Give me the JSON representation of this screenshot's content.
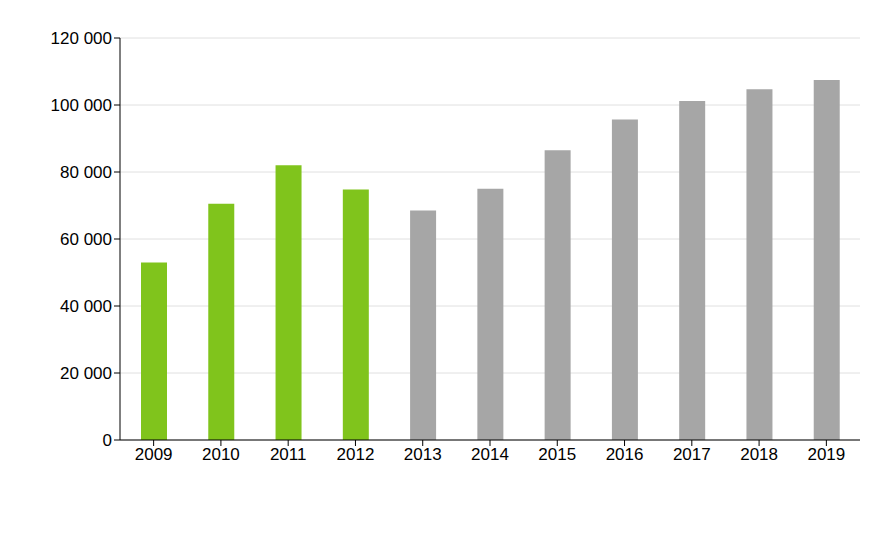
{
  "chart_data": {
    "type": "bar",
    "categories": [
      "2009",
      "2010",
      "2011",
      "2012",
      "2013",
      "2014",
      "2015",
      "2016",
      "2017",
      "2018",
      "2019"
    ],
    "values": [
      53000,
      70500,
      82000,
      74800,
      68500,
      75000,
      86500,
      95700,
      101200,
      104700,
      107500
    ],
    "colors": [
      "#80c41c",
      "#80c41c",
      "#80c41c",
      "#80c41c",
      "#a6a6a6",
      "#a6a6a6",
      "#a6a6a6",
      "#a6a6a6",
      "#a6a6a6",
      "#a6a6a6",
      "#a6a6a6"
    ],
    "ylim": [
      0,
      120000
    ],
    "yticks": [
      0,
      {
        "value": 20000,
        "label": "20 000"
      },
      {
        "value": 40000,
        "label": "40 000"
      },
      {
        "value": 60000,
        "label": "60 000"
      },
      {
        "value": 80000,
        "label": "80 000"
      },
      {
        "value": 100000,
        "label": "100 000"
      },
      {
        "value": 120000,
        "label": "120 000"
      }
    ],
    "grid": true
  }
}
